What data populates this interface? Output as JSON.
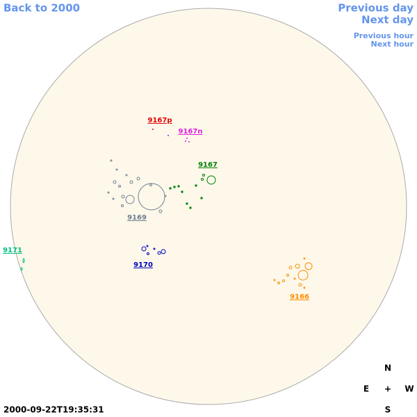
{
  "nav": {
    "back": "Back to 2000",
    "previous_day": "Previous day",
    "next_day": "Next day",
    "previous_hour": "Previous hour",
    "next_hour": "Next hour",
    "color": "#6495ed"
  },
  "regions": [
    {
      "label": "9167p",
      "color": "#e00000"
    },
    {
      "label": "9167n",
      "color": "#e020e0"
    },
    {
      "label": "9167",
      "color": "#008000"
    },
    {
      "label": "9169",
      "color": "#708090"
    },
    {
      "label": "9170",
      "color": "#0000c0"
    },
    {
      "label": "9171",
      "color": "#00c080"
    },
    {
      "label": "9166",
      "color": "#ff8c00"
    }
  ],
  "compass": {
    "north": "N",
    "east": "E",
    "center": "+",
    "west": "W",
    "south": "S"
  },
  "timestamp": "2000-09-22T19:35:31"
}
